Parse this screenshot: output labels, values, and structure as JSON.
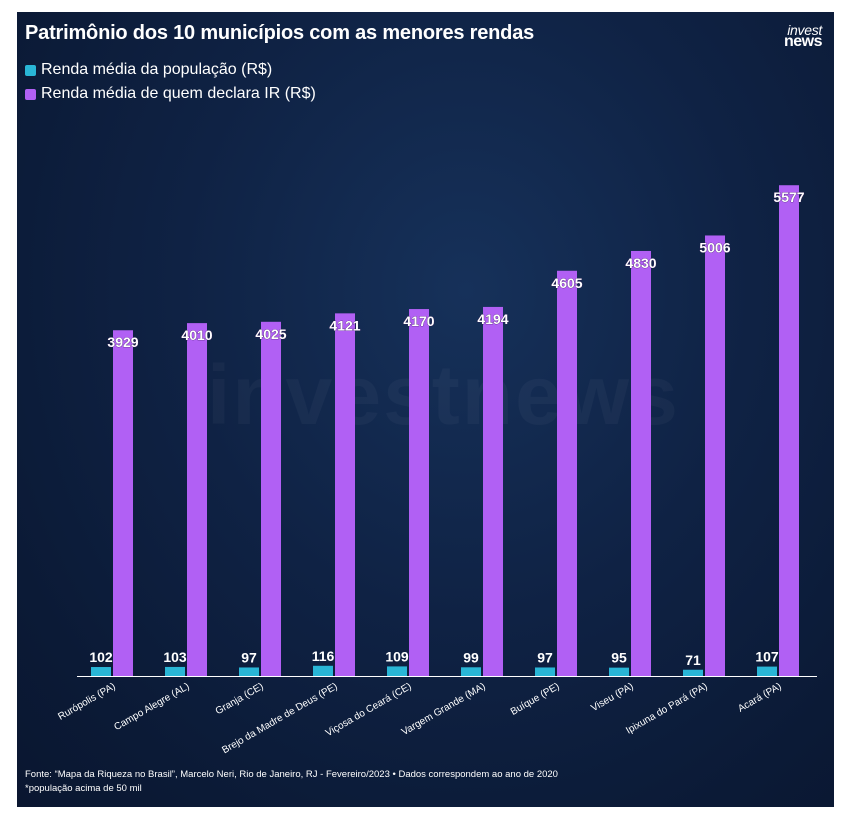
{
  "title": "Patrimônio dos 10 municípios com as menores rendas",
  "logo": {
    "line1": "invest",
    "line2": "news"
  },
  "watermark": "investnews",
  "chart_data": {
    "type": "bar",
    "title": "Patrimônio dos 10 municípios com as menores rendas",
    "categories": [
      "Rurópolis (PA)",
      "Campo Alegre (AL)",
      "Granja (CE)",
      "Brejo da Madre de Deus (PE)",
      "Viçosa do Ceará (CE)",
      "Vargem Grande (MA)",
      "Buíque (PE)",
      "Viseu (PA)",
      "Ipixuna do Pará (PA)",
      "Acará (PA)"
    ],
    "series": [
      {
        "name": "Renda média da população (R$)",
        "color": "#29b6d6",
        "values": [
          102,
          103,
          97,
          116,
          109,
          99,
          97,
          95,
          71,
          107
        ]
      },
      {
        "name": "Renda média de quem declara IR (R$)",
        "color": "#b160f4",
        "values": [
          3929,
          4010,
          4025,
          4121,
          4170,
          4194,
          4605,
          4830,
          5006,
          5577
        ]
      }
    ],
    "xlabel": "",
    "ylabel": "",
    "ylim": [
      0,
      6000
    ],
    "grid": false,
    "legend": "top-left"
  },
  "footer": {
    "source": "Fonte: “Mapa da Riqueza no Brasil”, Marcelo Neri, Rio de Janeiro, RJ - Fevereiro/2023 • Dados correspondem ao ano de 2020",
    "note": "*população acima de 50 mil"
  }
}
